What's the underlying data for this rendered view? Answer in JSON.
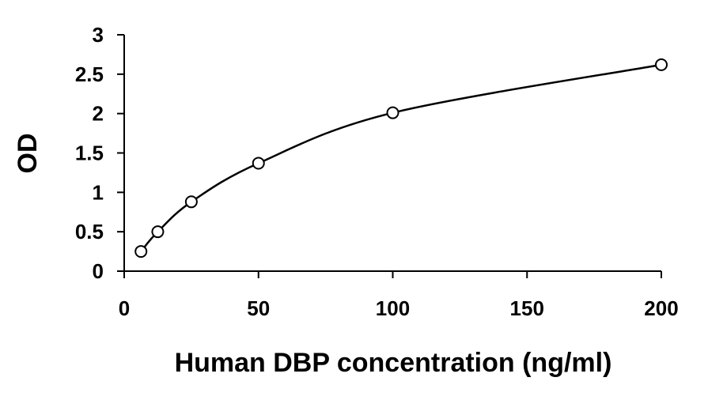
{
  "chart_data": {
    "type": "scatter",
    "title": "",
    "xlabel": "Human DBP concentration (ng/ml)",
    "ylabel": "OD",
    "xlim": [
      0,
      200
    ],
    "ylim": [
      0,
      3
    ],
    "x_ticks": [
      0,
      50,
      100,
      150,
      200
    ],
    "y_ticks": [
      0,
      0.5,
      1,
      1.5,
      2,
      2.5,
      3
    ],
    "x_tick_labels": [
      "0",
      "50",
      "100",
      "150",
      "200"
    ],
    "y_tick_labels": [
      "0",
      "0.5",
      "1",
      "1.5",
      "2",
      "2.5",
      "3"
    ],
    "grid": false,
    "legend": "none",
    "series": [
      {
        "x": [
          6.25,
          12.5,
          25,
          50,
          100,
          200
        ],
        "y": [
          0.25,
          0.5,
          0.88,
          1.37,
          2.01,
          2.62
        ],
        "marker": "open-circle",
        "line": "smooth-curve",
        "color": "#000000"
      }
    ]
  }
}
